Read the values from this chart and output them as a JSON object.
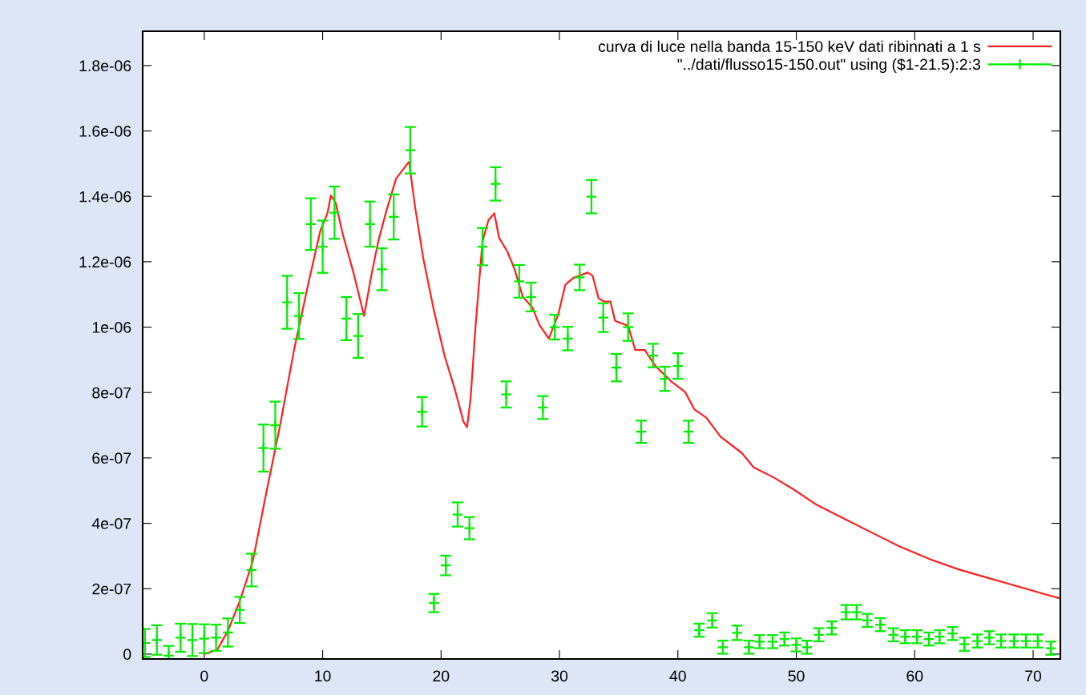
{
  "chart_data": {
    "type": "line",
    "xlim": [
      -5.2,
      72.3
    ],
    "ylim": [
      -1.5e-08,
      1.905e-06
    ],
    "xticks": [
      0,
      10,
      20,
      30,
      40,
      50,
      60,
      70
    ],
    "yticks": [
      {
        "value": 0,
        "label": "0"
      },
      {
        "value": 2e-07,
        "label": "2e-07"
      },
      {
        "value": 4e-07,
        "label": "4e-07"
      },
      {
        "value": 6e-07,
        "label": "6e-07"
      },
      {
        "value": 8e-07,
        "label": "8e-07"
      },
      {
        "value": 1e-06,
        "label": "1e-06"
      },
      {
        "value": 1.2e-06,
        "label": "1.2e-06"
      },
      {
        "value": 1.4e-06,
        "label": "1.4e-06"
      },
      {
        "value": 1.6e-06,
        "label": "1.6e-06"
      },
      {
        "value": 1.8e-06,
        "label": "1.8e-06"
      }
    ],
    "grid": false,
    "legend": "top right",
    "series": [
      {
        "name": "curva di luce nella banda 15-150 keV dati ribinnati a 1 s",
        "color": "#ff2020",
        "marker": "none",
        "line_style": "solid",
        "x": [
          0,
          1.1,
          2.0,
          3.0,
          4.1,
          5.2,
          6.4,
          7.6,
          8.8,
          9.8,
          10.4,
          10.7,
          11.1,
          11.7,
          12.6,
          13.5,
          14.1,
          14.7,
          15.4,
          16.2,
          17.1,
          17.3,
          17.8,
          18.5,
          19.4,
          20.3,
          21.2,
          21.9,
          22.2,
          22.5,
          22.9,
          23.5,
          24.0,
          24.5,
          24.9,
          25.6,
          26.2,
          26.9,
          27.7,
          28.3,
          29.1,
          29.9,
          30.5,
          31.2,
          32.4,
          32.8,
          33.3,
          33.8,
          34.3,
          34.7,
          35.8,
          36.4,
          37.2,
          38.1,
          39.5,
          40.6,
          41.4,
          42.4,
          43.6,
          45.4,
          46.4,
          48.1,
          49.8,
          51.6,
          54.0,
          56.4,
          58.8,
          61.3,
          63.7,
          66.1,
          68.5,
          70.9,
          72.2
        ],
        "values": [
          0,
          1.3e-08,
          7.1e-08,
          1.62e-07,
          2.84e-07,
          4.86e-07,
          6.99e-07,
          9.33e-07,
          1.135e-06,
          1.294e-06,
          1.348e-06,
          1.403e-06,
          1.38e-06,
          1.284e-06,
          1.167e-06,
          1.034e-06,
          1.156e-06,
          1.263e-06,
          1.358e-06,
          1.454e-06,
          1.497e-06,
          1.505e-06,
          1.369e-06,
          1.21e-06,
          1.05e-06,
          9.12e-07,
          8.05e-07,
          7.1e-07,
          6.94e-07,
          7.84e-07,
          9.97e-07,
          1.263e-06,
          1.327e-06,
          1.348e-06,
          1.273e-06,
          1.231e-06,
          1.178e-06,
          1.093e-06,
          1.061e-06,
          1.007e-06,
          9.65e-07,
          1.039e-06,
          1.13e-06,
          1.151e-06,
          1.167e-06,
          1.157e-06,
          1.088e-06,
          1.078e-06,
          1.078e-06,
          1.019e-06,
          1.004e-06,
          9.3e-07,
          9.3e-07,
          8.81e-07,
          8.32e-07,
          8.02e-07,
          7.48e-07,
          7.23e-07,
          6.65e-07,
          6.15e-07,
          5.71e-07,
          5.4e-07,
          5.03e-07,
          4.59e-07,
          4.15e-07,
          3.71e-07,
          3.28e-07,
          2.9e-07,
          2.59e-07,
          2.34e-07,
          2.09e-07,
          1.84e-07,
          1.71e-07
        ]
      },
      {
        "name": "\"../dati/flusso15-150.out\" using ($1-21.5):2:3",
        "type": "scatter",
        "color": "#00ee00",
        "marker": "cross",
        "x": [
          -5,
          -4,
          -3,
          -2,
          -1,
          0,
          1,
          2,
          3,
          4,
          5,
          6,
          7,
          8,
          9,
          10,
          11,
          12,
          13,
          14,
          15,
          16,
          17.4,
          18.4,
          19.4,
          20.4,
          21.4,
          22.4,
          23.5,
          24.6,
          25.5,
          26.6,
          27.6,
          28.6,
          29.6,
          30.7,
          31.7,
          32.7,
          33.7,
          34.8,
          35.8,
          36.9,
          37.9,
          38.9,
          40.0,
          40.9,
          41.8,
          42.9,
          43.8,
          45.0,
          46.0,
          46.9,
          48.0,
          49.0,
          50.0,
          50.9,
          51.9,
          53.0,
          54.2,
          55.1,
          56.0,
          57.1,
          58.2,
          59.2,
          60.2,
          61.2,
          62.1,
          63.2,
          64.2,
          65.3,
          66.3,
          67.3,
          68.4,
          69.4,
          70.4,
          71.5
        ],
        "values": [
          3.4e-08,
          4.3e-08,
          -5e-09,
          5e-08,
          4.3e-08,
          4.7e-08,
          5e-08,
          6.6e-08,
          1.35e-07,
          2.57e-07,
          6.3e-07,
          7e-07,
          1.076e-06,
          1.034e-06,
          1.315e-06,
          1.246e-06,
          1.35e-06,
          1.026e-06,
          9.73e-07,
          1.315e-06,
          1.177e-06,
          1.337e-06,
          1.541e-06,
          7.41e-07,
          1.56e-07,
          2.71e-07,
          4.27e-07,
          3.85e-07,
          1.246e-06,
          1.438e-06,
          7.94e-07,
          1.14e-06,
          1.092e-06,
          7.54e-07,
          1e-06,
          9.65e-07,
          1.152e-06,
          1.399e-06,
          1.029e-06,
          8.76e-07,
          1e-06,
          6.8e-07,
          9.13e-07,
          8.42e-07,
          8.81e-07,
          6.8e-07,
          7.3e-08,
          1.03e-07,
          2.1e-08,
          6.5e-08,
          2.1e-08,
          3.8e-08,
          3.8e-08,
          4.6e-08,
          2.8e-08,
          2.1e-08,
          5.9e-08,
          8e-08,
          1.28e-07,
          1.28e-07,
          1.03e-07,
          9e-08,
          5.9e-08,
          5.3e-08,
          5.3e-08,
          4.6e-08,
          5.3e-08,
          6.3e-08,
          3e-08,
          4e-08,
          5e-08,
          4e-08,
          4e-08,
          4e-08,
          4e-08,
          1.8e-08
        ],
        "errors": [
          4.3e-08,
          4.5e-08,
          3e-08,
          4.3e-08,
          4.9e-08,
          4.4e-08,
          4e-08,
          4.3e-08,
          4e-08,
          5e-08,
          7.2e-08,
          7.2e-08,
          8.1e-08,
          7e-08,
          7.9e-08,
          8e-08,
          8e-08,
          6.6e-08,
          6.7e-08,
          6.9e-08,
          6.4e-08,
          6.9e-08,
          7.1e-08,
          4.5e-08,
          2.8e-08,
          3e-08,
          3.7e-08,
          3.4e-08,
          5.7e-08,
          5.1e-08,
          4e-08,
          5e-08,
          4.4e-08,
          3.5e-08,
          3.8e-08,
          3.6e-08,
          3.9e-08,
          5.1e-08,
          4.4e-08,
          4.2e-08,
          4.2e-08,
          3.4e-08,
          3.6e-08,
          3.7e-08,
          3.9e-08,
          3.4e-08,
          2e-08,
          2.2e-08,
          2e-08,
          2.2e-08,
          2e-08,
          2e-08,
          2e-08,
          2e-08,
          2e-08,
          2e-08,
          2e-08,
          2e-08,
          2.2e-08,
          2.2e-08,
          2e-08,
          2e-08,
          2e-08,
          2e-08,
          2e-08,
          2e-08,
          2e-08,
          2e-08,
          2e-08,
          2e-08,
          2e-08,
          2e-08,
          2e-08,
          2e-08,
          2e-08,
          2e-08
        ]
      }
    ]
  }
}
